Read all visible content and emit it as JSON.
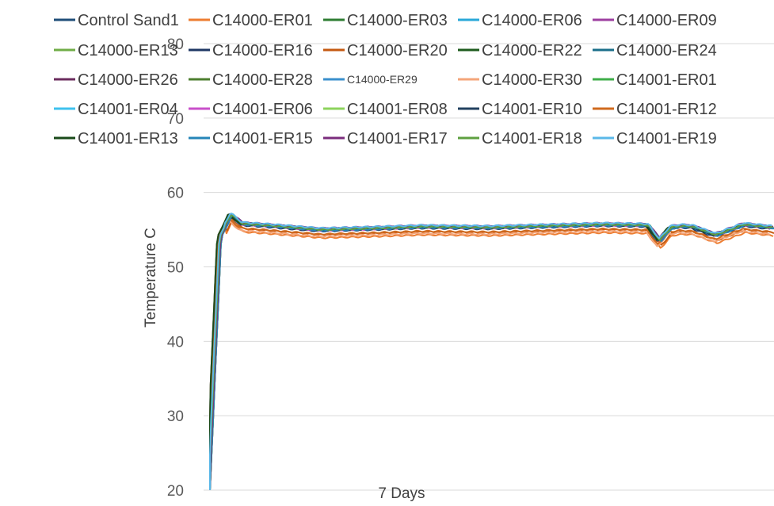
{
  "chart_data": {
    "type": "line",
    "title": "",
    "xlabel": "7 Days",
    "ylabel": "Temperature C",
    "ylim": [
      20,
      80
    ],
    "yticks": [
      20,
      30,
      40,
      50,
      60,
      70,
      80
    ],
    "grid": true,
    "legend_position": "top",
    "series": [
      {
        "name": "Control Sand1",
        "color": "#1F4E79",
        "offset": 0.0
      },
      {
        "name": "C14000-ER01",
        "color": "#ED7D31",
        "offset": -1.0
      },
      {
        "name": "C14000-ER03",
        "color": "#2E7D32",
        "offset": 0.2
      },
      {
        "name": "C14000-ER06",
        "color": "#29A8D8",
        "offset": 0.1
      },
      {
        "name": "C14000-ER09",
        "color": "#9E3FA0",
        "offset": 0.3
      },
      {
        "name": "C14000-ER13",
        "color": "#70AD47",
        "offset": 0.0
      },
      {
        "name": "C14000-ER16",
        "color": "#1F3864",
        "offset": -0.1
      },
      {
        "name": "C14000-ER20",
        "color": "#C55A11",
        "offset": -0.6
      },
      {
        "name": "C14000-ER22",
        "color": "#1E5C1E",
        "offset": 0.1
      },
      {
        "name": "C14000-ER24",
        "color": "#1B6F8A",
        "offset": 0.0
      },
      {
        "name": "C14000-ER26",
        "color": "#6B2C5E",
        "offset": 0.2
      },
      {
        "name": "C14000-ER28",
        "color": "#4D7E2F",
        "offset": 0.1
      },
      {
        "name": "C14000-ER29",
        "color": "#3A8FCC",
        "offset": 0.0,
        "small": true
      },
      {
        "name": "C14000-ER30",
        "color": "#F4A57A",
        "offset": -0.8
      },
      {
        "name": "C14001-ER01",
        "color": "#3FAE49",
        "offset": 0.1
      },
      {
        "name": "C14001-ER04",
        "color": "#3EC1EE",
        "offset": 0.2
      },
      {
        "name": "C14001-ER06",
        "color": "#C84FCA",
        "offset": 0.0
      },
      {
        "name": "C14001-ER08",
        "color": "#8CD35C",
        "offset": 0.1
      },
      {
        "name": "C14001-ER10",
        "color": "#22405F",
        "offset": 0.0
      },
      {
        "name": "C14001-ER12",
        "color": "#D06A1E",
        "offset": -0.5
      },
      {
        "name": "C14001-ER13",
        "color": "#1A4A1A",
        "offset": 0.1
      },
      {
        "name": "C14001-ER15",
        "color": "#2585B8",
        "offset": 0.0
      },
      {
        "name": "C14001-ER17",
        "color": "#7B2C7D",
        "offset": 0.2
      },
      {
        "name": "C14001-ER18",
        "color": "#5FA040",
        "offset": 0.1
      },
      {
        "name": "C14001-ER19",
        "color": "#5AB8E8",
        "offset": 0.3
      }
    ],
    "profile": {
      "x": [
        0,
        0.02,
        0.04,
        0.06,
        0.1,
        0.15,
        0.2,
        0.25,
        0.3,
        0.38,
        0.5,
        0.6,
        0.7,
        0.78,
        0.8,
        0.82,
        0.84,
        0.86,
        0.9,
        0.95,
        1.0
      ],
      "y": [
        20,
        54,
        57,
        55.7,
        55.5,
        55.2,
        54.9,
        55,
        55.1,
        55.3,
        55.2,
        55.4,
        55.6,
        55.5,
        53.5,
        55.2,
        55.4,
        55.3,
        54.2,
        55.6,
        55.2
      ]
    }
  }
}
